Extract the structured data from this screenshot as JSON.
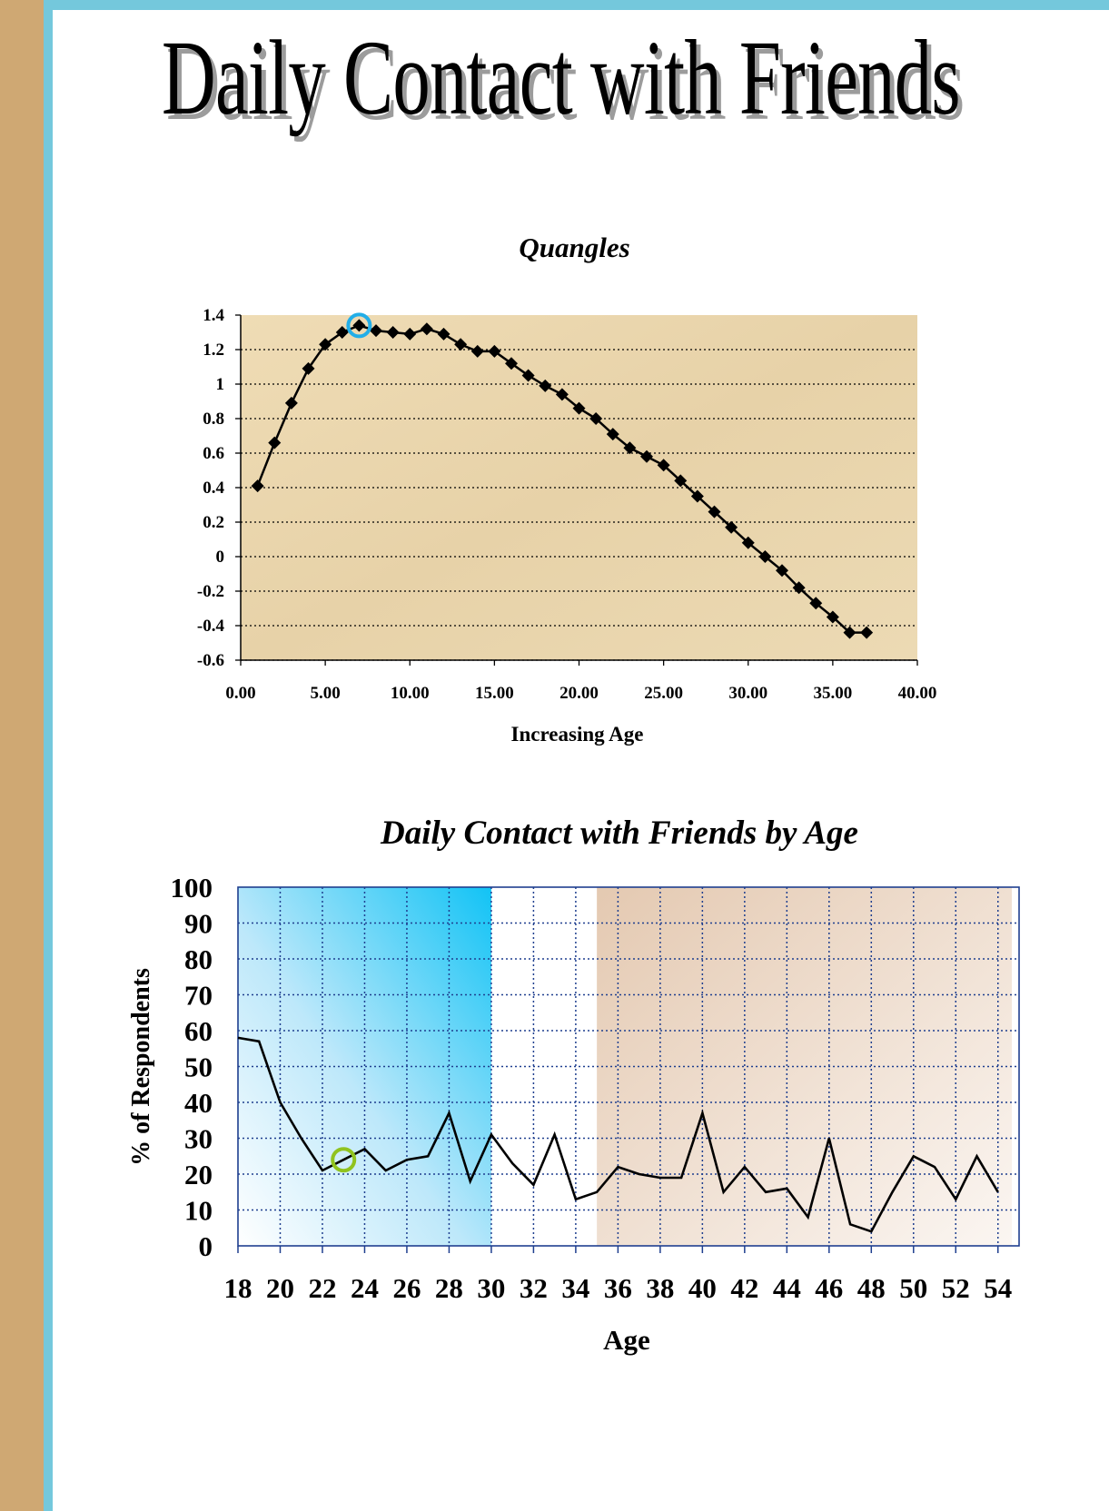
{
  "page": {
    "title": "Daily Contact with Friends"
  },
  "colors": {
    "frame_left": "#cfa873",
    "frame_accent": "#74c8dc",
    "highlight_circle_1": "#22aee8",
    "highlight_circle_2": "#90c31f"
  },
  "chart_data": [
    {
      "type": "scatter",
      "title": "Quangles",
      "xlabel": "Increasing Age",
      "ylabel": "",
      "xlim": [
        0,
        40
      ],
      "ylim": [
        -0.6,
        1.4
      ],
      "x_ticks": [
        "0.00",
        "5.00",
        "10.00",
        "15.00",
        "20.00",
        "25.00",
        "30.00",
        "35.00",
        "40.00"
      ],
      "y_ticks": [
        "1.4",
        "1.2",
        "1",
        "0.8",
        "0.6",
        "0.4",
        "0.2",
        "0",
        "-0.2",
        "-0.4",
        "-0.6"
      ],
      "grid": "horizontal dotted",
      "markers": "diamond, connected by line",
      "series": [
        {
          "x": [
            1,
            2,
            3,
            4,
            5,
            6,
            7,
            8,
            9,
            10,
            11,
            12,
            13,
            14,
            15,
            16,
            17,
            18,
            19,
            20,
            21,
            22,
            23,
            24,
            25,
            26,
            27,
            28,
            29,
            30,
            31,
            32,
            33,
            34,
            35,
            36,
            37
          ],
          "y": [
            0.41,
            0.66,
            0.89,
            1.09,
            1.23,
            1.3,
            1.34,
            1.31,
            1.3,
            1.29,
            1.32,
            1.29,
            1.23,
            1.19,
            1.19,
            1.12,
            1.05,
            0.99,
            0.94,
            0.86,
            0.8,
            0.71,
            0.63,
            0.58,
            0.53,
            0.44,
            0.35,
            0.26,
            0.17,
            0.08,
            0.0,
            -0.08,
            -0.18,
            -0.27,
            -0.35,
            -0.44,
            -0.44
          ]
        }
      ],
      "highlight": {
        "x": 7,
        "y": 1.34
      }
    },
    {
      "type": "line",
      "title": "Daily Contact with Friends by Age",
      "xlabel": "Age",
      "ylabel": "% of Respondents",
      "xlim": [
        18,
        55
      ],
      "ylim": [
        0,
        100
      ],
      "x_ticks": [
        "18",
        "20",
        "22",
        "24",
        "26",
        "28",
        "30",
        "32",
        "34",
        "36",
        "38",
        "40",
        "42",
        "44",
        "46",
        "48",
        "50",
        "52",
        "54"
      ],
      "y_ticks": [
        "100",
        "90",
        "80",
        "70",
        "60",
        "50",
        "40",
        "30",
        "20",
        "10",
        "0"
      ],
      "grid": "dotted both",
      "shaded_bands": [
        {
          "from": 18,
          "to": 30,
          "color": "#12c3f5"
        },
        {
          "from": 35,
          "to": 55,
          "color": "#dcc0a8"
        }
      ],
      "series": [
        {
          "x": [
            18,
            19,
            20,
            21,
            22,
            23,
            24,
            25,
            26,
            27,
            28,
            29,
            30,
            31,
            32,
            33,
            34,
            35,
            36,
            37,
            38,
            39,
            40,
            41,
            42,
            43,
            44,
            45,
            46,
            47,
            48,
            49,
            50,
            51,
            52,
            53,
            54
          ],
          "y": [
            58,
            57,
            40,
            30,
            21,
            24,
            27,
            21,
            24,
            25,
            37,
            18,
            31,
            23,
            17,
            31,
            13,
            15,
            22,
            20,
            19,
            19,
            37,
            15,
            22,
            15,
            16,
            8,
            30,
            6,
            4,
            15,
            25,
            22,
            13,
            25,
            15
          ]
        }
      ],
      "highlight": {
        "x": 23,
        "y": 24
      }
    }
  ]
}
